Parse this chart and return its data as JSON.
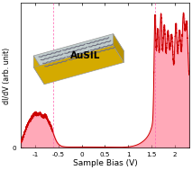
{
  "title": "",
  "xlabel": "Sample Bias (V)",
  "ylabel": "dI/dV (arb. unit)",
  "xlim": [
    -1.3,
    2.3
  ],
  "ylim": [
    0,
    1.05
  ],
  "xticks": [
    -1.0,
    -0.5,
    0.0,
    0.5,
    1.0,
    1.5,
    2.0
  ],
  "xtick_labels": [
    "-1",
    "-0.5",
    "0",
    "0.5",
    "1",
    "1.5",
    "2"
  ],
  "background_color": "#ffffff",
  "line_color": "#cc0000",
  "dashed_line_color": "#ff69b4",
  "vline1_x": -0.62,
  "vline2_x": 1.58,
  "inset_label": "AuSIL",
  "chip_top_color": "#c0cccc",
  "chip_front_color": "#d4aa00",
  "chip_right_color": "#b89200",
  "chip_edge_color": "#999999",
  "gnr_color": "#707080"
}
